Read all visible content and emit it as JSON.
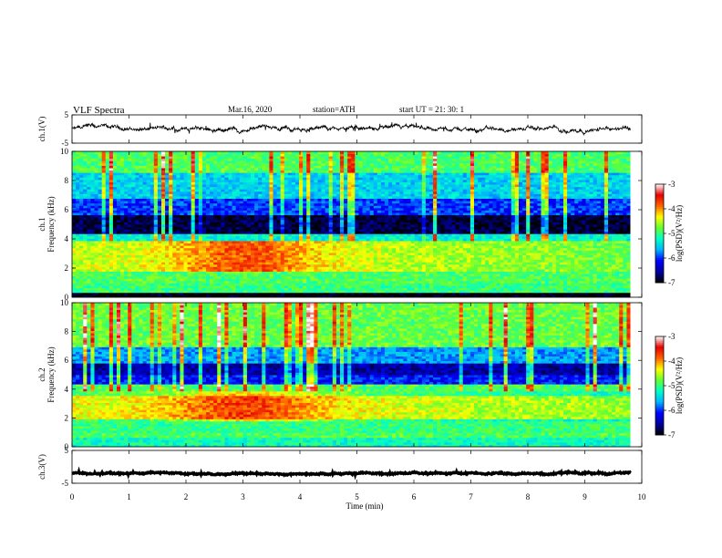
{
  "header": {
    "title": "VLF  Spectra",
    "date": "Mar.16, 2020",
    "station": "station=ATH",
    "start": "start  UT  =    21: 30: 1"
  },
  "chart_data": [
    {
      "type": "line",
      "panel": "ch1-waveform",
      "ylabel": "ch.1(V)",
      "ylim": [
        -5,
        5
      ],
      "yticks": [
        "5",
        "-5"
      ],
      "baseline": 0,
      "amplitude": 0.8
    },
    {
      "type": "heatmap",
      "panel": "ch1-spectrogram",
      "ylabel": "ch.1\nFrequency (kHz)",
      "ylabel_lines": [
        "ch.1",
        "Frequency (kHz)"
      ],
      "ylim": [
        0,
        10
      ],
      "yticks": [
        "0",
        "2",
        "4",
        "6",
        "8",
        "10"
      ],
      "colorbar": {
        "label": "log(PSD)(V²/Hz)",
        "range": [
          -7,
          -3
        ],
        "ticks": [
          "-3",
          "-4",
          "-5",
          "-6",
          "-7"
        ]
      },
      "bands_khz_logpsd": [
        {
          "from": 0.0,
          "to": 0.3,
          "value": -7.0
        },
        {
          "from": 0.3,
          "to": 1.0,
          "value": -5.0
        },
        {
          "from": 1.0,
          "to": 1.8,
          "value": -4.9
        },
        {
          "from": 1.8,
          "to": 3.8,
          "value": -4.5
        },
        {
          "from": 3.8,
          "to": 4.4,
          "value": -5.3
        },
        {
          "from": 4.4,
          "to": 5.6,
          "value": -6.8
        },
        {
          "from": 5.6,
          "to": 6.8,
          "value": -6.0
        },
        {
          "from": 6.8,
          "to": 8.5,
          "value": -5.5
        },
        {
          "from": 8.5,
          "to": 10.0,
          "value": -4.9
        }
      ]
    },
    {
      "type": "heatmap",
      "panel": "ch2-spectrogram",
      "ylabel": "ch.2\nFrequency (kHz)",
      "ylabel_lines": [
        "ch.2",
        "Frequency (kHz)"
      ],
      "ylim": [
        0,
        10
      ],
      "yticks": [
        "0",
        "2",
        "4",
        "6",
        "8",
        "10"
      ],
      "colorbar": {
        "label": "log(PSD)(V²/Hz)",
        "range": [
          -7,
          -3
        ],
        "ticks": [
          "-3",
          "-4",
          "-5",
          "-6",
          "-7"
        ]
      },
      "bands_khz_logpsd": [
        {
          "from": 0.0,
          "to": 0.6,
          "value": -5.2
        },
        {
          "from": 0.6,
          "to": 1.0,
          "value": -4.9
        },
        {
          "from": 1.0,
          "to": 1.9,
          "value": -5.0
        },
        {
          "from": 1.9,
          "to": 3.6,
          "value": -4.4
        },
        {
          "from": 3.6,
          "to": 4.3,
          "value": -4.9
        },
        {
          "from": 4.3,
          "to": 5.0,
          "value": -6.1
        },
        {
          "from": 5.0,
          "to": 5.8,
          "value": -6.5
        },
        {
          "from": 5.8,
          "to": 7.0,
          "value": -5.7
        },
        {
          "from": 7.0,
          "to": 10.0,
          "value": -4.8
        }
      ]
    },
    {
      "type": "line",
      "panel": "ch3-waveform",
      "ylabel": "ch.3(V)",
      "ylim": [
        -5,
        5
      ],
      "yticks": [
        "5",
        "-5"
      ],
      "baseline": -2,
      "amplitude": 0.25
    }
  ],
  "xaxis": {
    "label": "Time  (min)",
    "range": [
      0,
      10
    ],
    "ticks": [
      "0",
      "1",
      "2",
      "3",
      "4",
      "5",
      "6",
      "7",
      "8",
      "9",
      "10"
    ],
    "data_end": 9.8
  },
  "colors": {
    "colormap": [
      "#000000",
      "#0000a0",
      "#0000ff",
      "#00b4ff",
      "#00ffc8",
      "#64ff32",
      "#ffff00",
      "#ff6400",
      "#e60000",
      "#ffffff"
    ],
    "trace": "#000000"
  }
}
